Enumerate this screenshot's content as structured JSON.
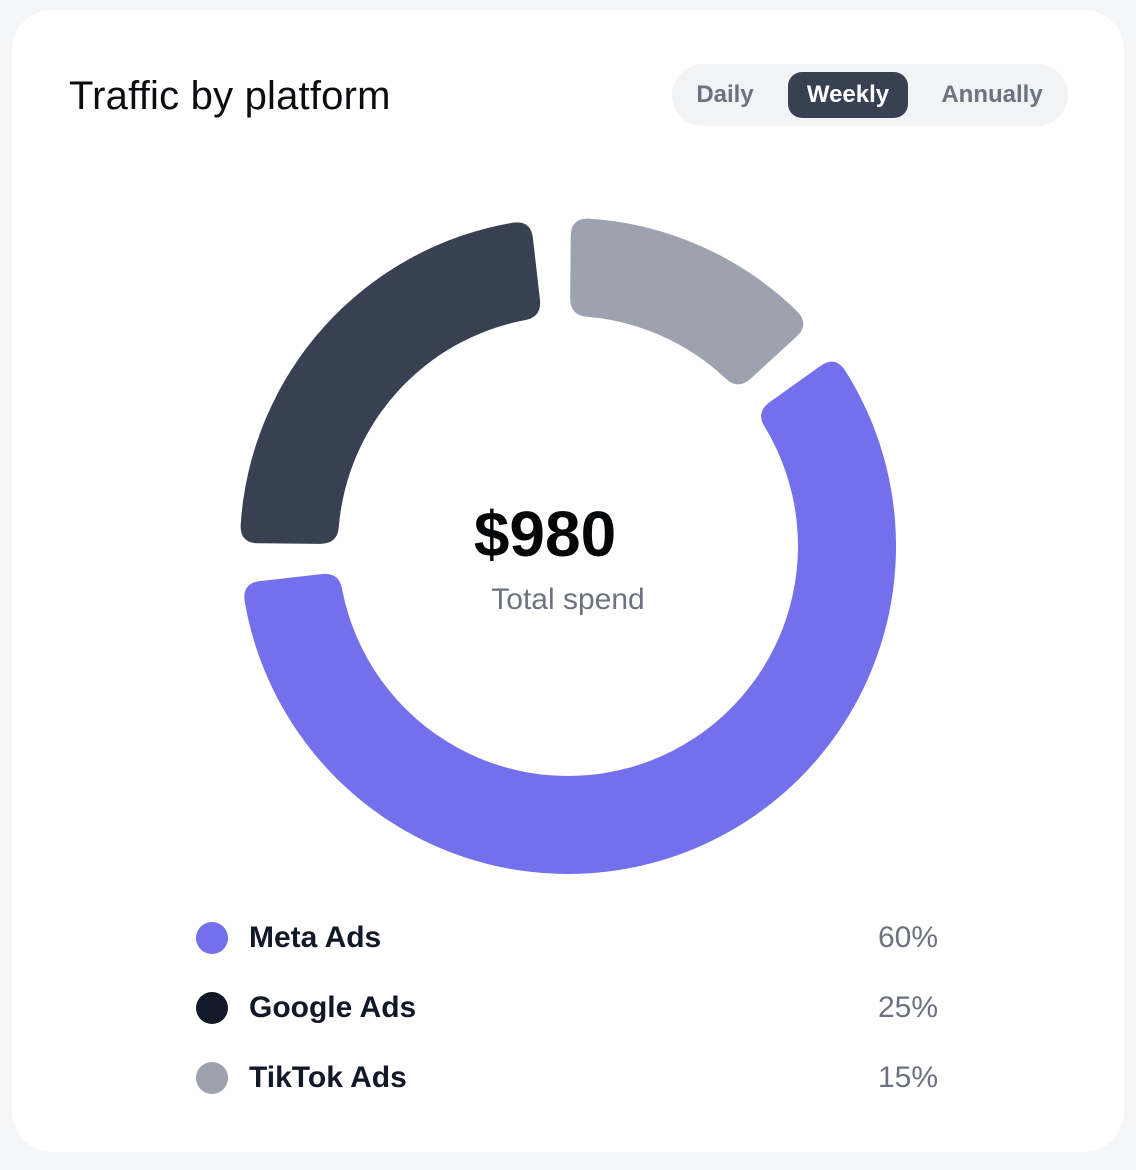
{
  "card": {
    "title": "Traffic by platform",
    "period_tabs": [
      {
        "label": "Daily",
        "selected": false
      },
      {
        "label": "Weekly",
        "selected": true
      },
      {
        "label": "Annually",
        "selected": false
      }
    ]
  },
  "center": {
    "value": "$980",
    "label": "Total spend"
  },
  "legend": [
    {
      "name": "Meta Ads",
      "percent": "60%",
      "color": "#7470eb"
    },
    {
      "name": "Google Ads",
      "percent": "25%",
      "color": "#111827"
    },
    {
      "name": "TikTok Ads",
      "percent": "15%",
      "color": "#9ca3af"
    }
  ],
  "chart_data": {
    "type": "pie",
    "variant": "donut",
    "title": "Traffic by platform",
    "center_value": "$980",
    "center_label": "Total spend",
    "categories": [
      "Meta Ads",
      "Google Ads",
      "TikTok Ads"
    ],
    "values": [
      60,
      25,
      15
    ],
    "unit": "%",
    "colors": {
      "Meta Ads": "#7470eb",
      "Google Ads": "#374151",
      "TikTok Ads": "#9ca3af"
    },
    "legend_position": "bottom"
  }
}
